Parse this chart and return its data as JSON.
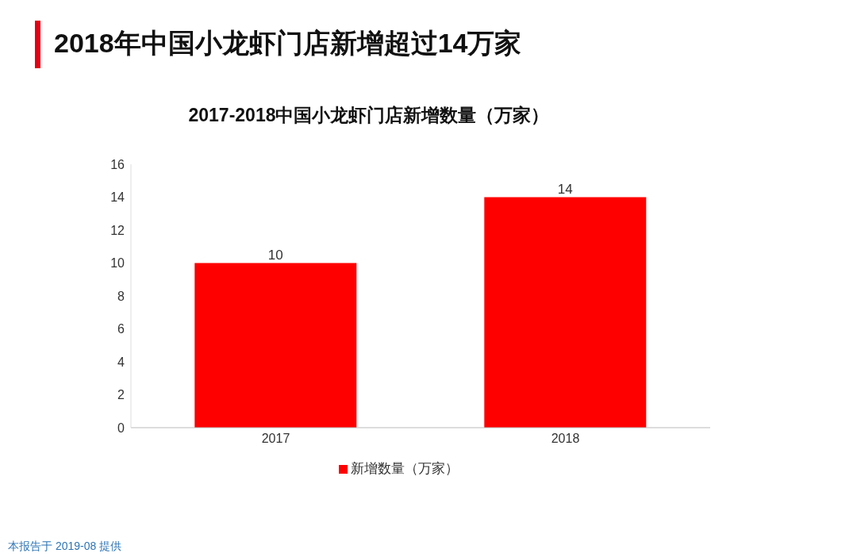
{
  "chart_data": {
    "type": "bar",
    "title": "2018年中国小龙虾门店新增超过14万家",
    "subtitle": "2017-2018中国小龙虾门店新增数量（万家）",
    "categories": [
      "2017",
      "2018"
    ],
    "series": [
      {
        "name": "新增数量（万家）",
        "color": "#ff0000",
        "values": [
          10,
          14
        ]
      }
    ],
    "ylim": [
      0,
      16
    ],
    "yticks": [
      0,
      2,
      4,
      6,
      8,
      10,
      12,
      14,
      16
    ],
    "data_labels": true,
    "grid": false,
    "legend": "bottom",
    "annotations": [
      "本报告于 2019-08 提供"
    ]
  }
}
